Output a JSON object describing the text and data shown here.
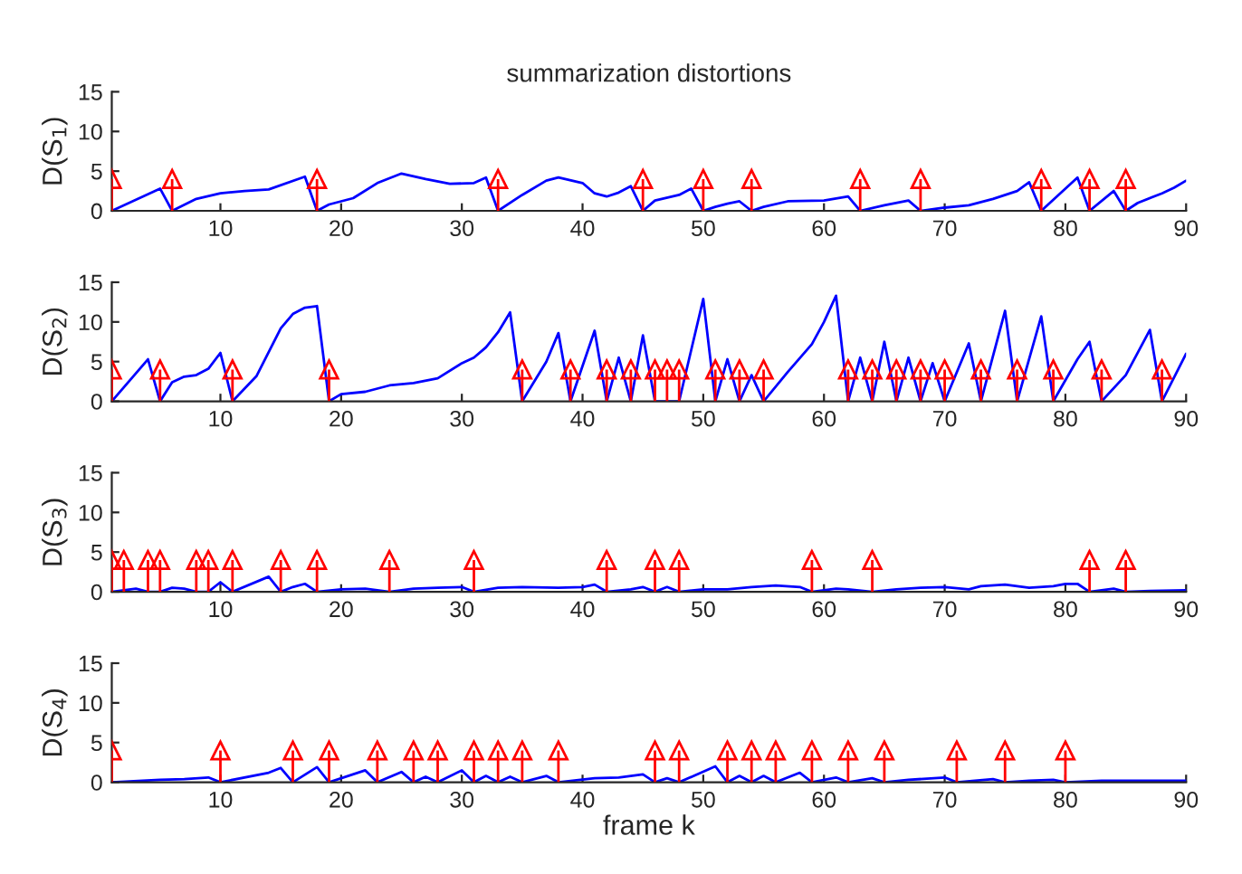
{
  "chart_data": [
    {
      "type": "line",
      "title": "summarization distortions",
      "ylabel": "D(S$_{1}$)",
      "xlim": [
        1,
        90
      ],
      "ylim": [
        0,
        15
      ],
      "xticks": [
        10,
        20,
        30,
        40,
        50,
        60,
        70,
        80,
        90
      ],
      "yticks": [
        0,
        5,
        10,
        15
      ],
      "grid": false,
      "legend": false,
      "series": [
        {
          "type": "line",
          "color": "#0000ff",
          "marker": "none",
          "line_style": "solid",
          "x": [
            1,
            5,
            6,
            8,
            10,
            12,
            14,
            17,
            18,
            19,
            21,
            23,
            25,
            27,
            29,
            31,
            32,
            33,
            35,
            37,
            38,
            40,
            41,
            42,
            43,
            44,
            45,
            46,
            48,
            49,
            50,
            51,
            52,
            53,
            54,
            55,
            57,
            60,
            62,
            63,
            65,
            67,
            68,
            70,
            72,
            74,
            76,
            77,
            78,
            80,
            81,
            82,
            84,
            85,
            86,
            88,
            89,
            90
          ],
          "values": [
            0,
            2.8,
            0,
            1.5,
            2.2,
            2.5,
            2.7,
            4.3,
            0,
            0.8,
            1.6,
            3.5,
            4.7,
            4,
            3.4,
            3.5,
            4.2,
            0,
            2,
            3.8,
            4.2,
            3.5,
            2.2,
            1.8,
            2.3,
            3.1,
            0,
            1.3,
            2,
            2.8,
            0,
            0.5,
            0.9,
            1.2,
            0,
            0.5,
            1.2,
            1.3,
            1.8,
            0,
            0.7,
            1.3,
            0,
            0.4,
            0.7,
            1.5,
            2.5,
            3.6,
            0,
            2.8,
            4.2,
            0,
            2.5,
            0,
            1,
            2.2,
            2.9,
            3.8
          ]
        },
        {
          "type": "lollipop",
          "color": "#ff0000",
          "marker": "triangle",
          "x": [
            1,
            6,
            18,
            33,
            45,
            50,
            54,
            63,
            68,
            78,
            82,
            85
          ],
          "values": [
            4,
            4,
            4,
            4,
            4,
            4,
            4,
            4,
            4,
            4,
            4,
            4
          ]
        }
      ]
    },
    {
      "type": "line",
      "ylabel": "D(S$_{2}$)",
      "xlim": [
        1,
        90
      ],
      "ylim": [
        0,
        15
      ],
      "xticks": [
        10,
        20,
        30,
        40,
        50,
        60,
        70,
        80,
        90
      ],
      "yticks": [
        0,
        5,
        10,
        15
      ],
      "grid": false,
      "legend": false,
      "series": [
        {
          "type": "line",
          "color": "#0000ff",
          "marker": "none",
          "line_style": "solid",
          "x": [
            1,
            4,
            5,
            6,
            7,
            8,
            9,
            10,
            11,
            13,
            15,
            16,
            17,
            18,
            19,
            20,
            22,
            24,
            26,
            28,
            30,
            31,
            32,
            33,
            34,
            35,
            37,
            38,
            39,
            41,
            42,
            43,
            44,
            45,
            46,
            48,
            50,
            51,
            52,
            53,
            54,
            55,
            57,
            59,
            60,
            61,
            62,
            63,
            64,
            65,
            66,
            67,
            68,
            69,
            70,
            72,
            73,
            75,
            76,
            78,
            79,
            81,
            82,
            83,
            85,
            87,
            88,
            90
          ],
          "values": [
            0,
            5.3,
            0,
            2.4,
            3.1,
            3.3,
            4.1,
            6.1,
            0,
            3.2,
            9.2,
            11,
            11.8,
            12,
            0,
            0.9,
            1.2,
            2,
            2.3,
            2.9,
            4.8,
            5.5,
            6.8,
            8.7,
            11.2,
            0,
            5,
            8.6,
            0,
            8.9,
            0,
            5.5,
            0,
            8.3,
            0,
            0,
            12.9,
            0,
            5.3,
            0,
            3.3,
            0,
            3.7,
            7.2,
            10,
            13.3,
            0,
            5.5,
            0,
            7.5,
            0,
            5.5,
            0,
            4.8,
            0,
            7.3,
            0,
            11.4,
            0,
            10.7,
            0,
            5.3,
            7.5,
            0,
            3.3,
            9,
            0,
            6
          ]
        },
        {
          "type": "lollipop",
          "color": "#ff0000",
          "marker": "triangle",
          "x": [
            1,
            5,
            11,
            19,
            35,
            39,
            42,
            44,
            46,
            47,
            48,
            51,
            53,
            55,
            62,
            64,
            66,
            68,
            70,
            73,
            76,
            79,
            83,
            88
          ],
          "values": [
            4,
            4,
            4,
            4,
            4,
            4,
            4,
            4,
            4,
            4,
            4,
            4,
            4,
            4,
            4,
            4,
            4,
            4,
            4,
            4,
            4,
            4,
            4,
            4
          ]
        }
      ]
    },
    {
      "type": "line",
      "ylabel": "D(S$_{3}$)",
      "xlim": [
        1,
        90
      ],
      "ylim": [
        0,
        15
      ],
      "xticks": [
        10,
        20,
        30,
        40,
        50,
        60,
        70,
        80,
        90
      ],
      "yticks": [
        0,
        5,
        10,
        15
      ],
      "grid": false,
      "legend": false,
      "series": [
        {
          "type": "line",
          "color": "#0000ff",
          "marker": "none",
          "line_style": "solid",
          "x": [
            1,
            3,
            4,
            5,
            6,
            7,
            8,
            9,
            10,
            11,
            14,
            15,
            16,
            17,
            18,
            20,
            22,
            24,
            26,
            28,
            30,
            31,
            33,
            35,
            38,
            40,
            41,
            42,
            44,
            45,
            46,
            47,
            48,
            50,
            52,
            54,
            56,
            58,
            59,
            61,
            62,
            64,
            66,
            68,
            70,
            72,
            73,
            75,
            77,
            79,
            80,
            81,
            82,
            84,
            85,
            87,
            90
          ],
          "values": [
            0,
            0.4,
            0,
            0,
            0.5,
            0.4,
            0,
            0,
            1.2,
            0,
            1.9,
            0,
            0.6,
            1,
            0,
            0.3,
            0.4,
            0,
            0.4,
            0.5,
            0.6,
            0,
            0.5,
            0.6,
            0.5,
            0.6,
            0.9,
            0,
            0.3,
            0.6,
            0,
            0.6,
            0,
            0.3,
            0.3,
            0.6,
            0.8,
            0.6,
            0,
            0.4,
            0.3,
            0,
            0.3,
            0.5,
            0.6,
            0.3,
            0.7,
            0.9,
            0.5,
            0.7,
            1,
            1,
            0,
            0.4,
            0,
            0.1,
            0.2
          ]
        },
        {
          "type": "lollipop",
          "color": "#ff0000",
          "marker": "triangle",
          "x": [
            1,
            2,
            4,
            5,
            8,
            9,
            11,
            15,
            18,
            24,
            31,
            42,
            46,
            48,
            59,
            64,
            82,
            85
          ],
          "values": [
            4,
            4,
            4,
            4,
            4,
            4,
            4,
            4,
            4,
            4,
            4,
            4,
            4,
            4,
            4,
            4,
            4,
            4
          ]
        }
      ]
    },
    {
      "type": "line",
      "ylabel": "D(S$_{4}$)",
      "xlabel": "frame k",
      "xlim": [
        1,
        90
      ],
      "ylim": [
        0,
        15
      ],
      "xticks": [
        10,
        20,
        30,
        40,
        50,
        60,
        70,
        80,
        90
      ],
      "yticks": [
        0,
        5,
        10,
        15
      ],
      "grid": false,
      "legend": false,
      "series": [
        {
          "type": "line",
          "color": "#0000ff",
          "marker": "none",
          "line_style": "solid",
          "x": [
            1,
            5,
            7,
            9,
            10,
            14,
            15,
            16,
            18,
            19,
            22,
            23,
            25,
            26,
            27,
            28,
            30,
            31,
            32,
            33,
            34,
            35,
            37,
            38,
            41,
            43,
            45,
            46,
            47,
            48,
            51,
            52,
            53,
            54,
            55,
            56,
            58,
            59,
            61,
            62,
            64,
            65,
            67,
            70,
            71,
            74,
            75,
            77,
            79,
            80,
            83,
            90
          ],
          "values": [
            0,
            0.3,
            0.4,
            0.6,
            0,
            1.2,
            1.8,
            0,
            1.9,
            0,
            1.5,
            0,
            1.3,
            0,
            0.7,
            0,
            1.5,
            0,
            0.8,
            0,
            0.7,
            0,
            0.8,
            0,
            0.5,
            0.6,
            1,
            0,
            0.5,
            0,
            2,
            0,
            0.8,
            0,
            0.8,
            0,
            1.2,
            0,
            0.6,
            0,
            0.5,
            0,
            0.3,
            0.6,
            0,
            0.4,
            0,
            0.2,
            0.3,
            0,
            0.2,
            0.2
          ]
        },
        {
          "type": "lollipop",
          "color": "#ff0000",
          "marker": "triangle",
          "x": [
            1,
            10,
            16,
            19,
            23,
            26,
            28,
            31,
            33,
            35,
            38,
            46,
            48,
            52,
            54,
            56,
            59,
            62,
            65,
            71,
            75,
            80
          ],
          "values": [
            4,
            4,
            4,
            4,
            4,
            4,
            4,
            4,
            4,
            4,
            4,
            4,
            4,
            4,
            4,
            4,
            4,
            4,
            4,
            4,
            4,
            4
          ]
        }
      ]
    }
  ]
}
